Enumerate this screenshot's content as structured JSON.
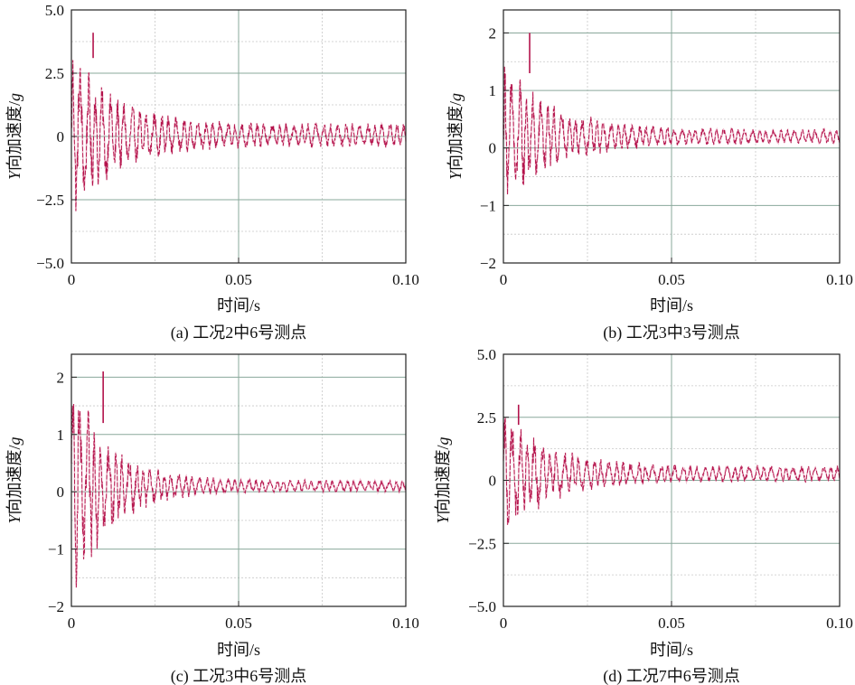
{
  "colors": {
    "signal": "#b3124b",
    "signal_light": "#e48aa8",
    "grid_major": "#8aa89b",
    "grid_minor": "#c8c8c8",
    "axis": "#222222"
  },
  "chart_data": [
    {
      "type": "line",
      "subtitle": "(a) 工况2中6号测点",
      "xlabel": "时间/s",
      "ylabel_prefix": "Y",
      "ylabel_mid": "向加速度/",
      "ylabel_unit": "g",
      "xlim": [
        0,
        0.1
      ],
      "ylim": [
        -5,
        5
      ],
      "xticks": [
        "0",
        "0.05",
        "0.10"
      ],
      "xtick_values": [
        0,
        0.05,
        0.1
      ],
      "yticks": [
        "5.0",
        "2.5",
        "0",
        "−2.5",
        "−5.0"
      ],
      "ytick_values": [
        5,
        2.5,
        0,
        -2.5,
        -5
      ],
      "grid": true,
      "series": [
        {
          "signal": {
            "x_start": 0.0,
            "x_end": 0.1,
            "peak": 3.2,
            "floor": 0.45,
            "decay": 0.013,
            "period": 0.0022,
            "offset": 0.05
          },
          "spike": {
            "x": 0.0065,
            "min": 3.1,
            "max": 4.1
          }
        }
      ]
    },
    {
      "type": "line",
      "subtitle": "(b) 工况3中3号测点",
      "xlabel": "时间/s",
      "ylabel_prefix": "Y",
      "ylabel_mid": "向加速度/",
      "ylabel_unit": "g",
      "xlim": [
        0,
        0.1
      ],
      "ylim": [
        -2,
        2.4
      ],
      "xticks": [
        "0",
        "0.05",
        "0.10"
      ],
      "xtick_values": [
        0,
        0.05,
        0.1
      ],
      "yticks": [
        "2",
        "1",
        "0",
        "−1",
        "−2"
      ],
      "ytick_values": [
        2,
        1,
        0,
        -1,
        -2
      ],
      "grid": true,
      "series": [
        {
          "signal": {
            "x_start": 0.0,
            "x_end": 0.1,
            "peak": 1.25,
            "floor": 0.12,
            "decay": 0.015,
            "period": 0.0021,
            "offset": 0.2
          },
          "spike": {
            "x": 0.0078,
            "min": 1.3,
            "max": 2.0
          }
        }
      ]
    },
    {
      "type": "line",
      "subtitle": "(c) 工况3中6号测点",
      "xlabel": "时间/s",
      "ylabel_prefix": "Y",
      "ylabel_mid": "向加速度/",
      "ylabel_unit": "g",
      "xlim": [
        0,
        0.1
      ],
      "ylim": [
        -2,
        2.4
      ],
      "xticks": [
        "0",
        "0.05",
        "0.10"
      ],
      "xtick_values": [
        0,
        0.05,
        0.1
      ],
      "yticks": [
        "2",
        "1",
        "0",
        "−1",
        "−2"
      ],
      "ytick_values": [
        2,
        1,
        0,
        -1,
        -2
      ],
      "grid": true,
      "series": [
        {
          "signal": {
            "x_start": 0.0,
            "x_end": 0.1,
            "peak": 2.0,
            "floor": 0.1,
            "decay": 0.011,
            "period": 0.0021,
            "offset": 0.1
          },
          "spike": {
            "x": 0.0095,
            "min": 1.2,
            "max": 2.1
          }
        }
      ]
    },
    {
      "type": "line",
      "subtitle": "(d) 工况7中6号测点",
      "xlabel": "时间/s",
      "ylabel_prefix": "Y",
      "ylabel_mid": "向加速度/",
      "ylabel_unit": "g",
      "xlim": [
        0,
        0.1
      ],
      "ylim": [
        -5,
        5
      ],
      "xticks": [
        "0",
        "0.05",
        "0.10"
      ],
      "xtick_values": [
        0,
        0.05,
        0.1
      ],
      "yticks": [
        "5.0",
        "2.5",
        "0",
        "−2.5",
        "−5.0"
      ],
      "ytick_values": [
        5,
        2.5,
        0,
        -2.5,
        -5
      ],
      "grid": true,
      "series": [
        {
          "signal": {
            "x_start": 0.0,
            "x_end": 0.1,
            "peak": 2.4,
            "floor": 0.3,
            "decay": 0.014,
            "period": 0.0022,
            "offset": 0.25
          },
          "spike": {
            "x": 0.0045,
            "min": 2.2,
            "max": 3.0
          }
        }
      ]
    }
  ]
}
